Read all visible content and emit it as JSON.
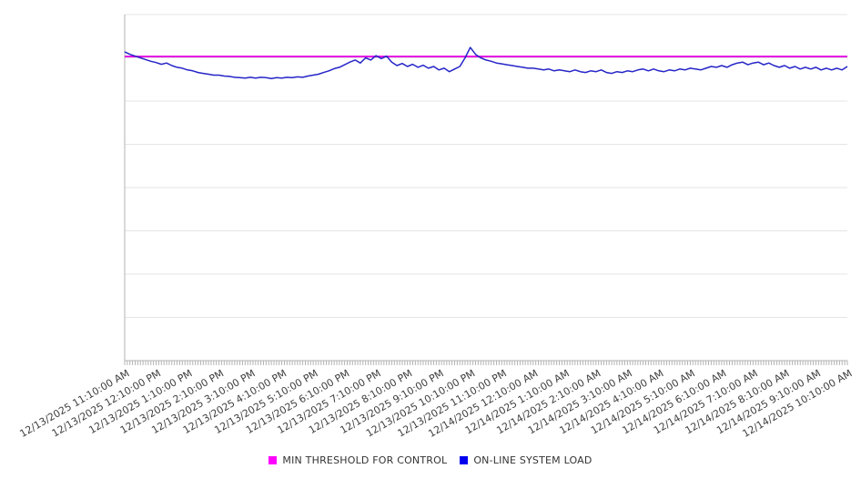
{
  "page": {
    "background_color": "#ffffff"
  },
  "chart_data": {
    "type": "line",
    "title": "",
    "x_axis": {
      "tick_labels": [
        "12/13/2025 11:10:00 AM",
        "12/13/2025 12:10:00 PM",
        "12/13/2025 1:10:00 PM",
        "12/13/2025 2:10:00 PM",
        "12/13/2025 3:10:00 PM",
        "12/13/2025 4:10:00 PM",
        "12/13/2025 5:10:00 PM",
        "12/13/2025 6:10:00 PM",
        "12/13/2025 7:10:00 PM",
        "12/13/2025 8:10:00 PM",
        "12/13/2025 9:10:00 PM",
        "12/13/2025 10:10:00 PM",
        "12/13/2025 11:10:00 PM",
        "12/14/2025 12:10:00 AM",
        "12/14/2025 1:10:00 AM",
        "12/14/2025 2:10:00 AM",
        "12/14/2025 3:10:00 AM",
        "12/14/2025 4:10:00 AM",
        "12/14/2025 5:10:00 AM",
        "12/14/2025 6:10:00 AM",
        "12/14/2025 7:10:00 AM",
        "12/14/2025 8:10:00 AM",
        "12/14/2025 9:10:00 AM",
        "12/14/2025 10:10:00 AM"
      ],
      "minor_tick_interval_minutes": 5,
      "label_rotation_deg": -30
    },
    "y_axis": {
      "min": 0,
      "max": 8,
      "gridline_step": 1,
      "tick_labels_visible": false
    },
    "grid": {
      "horizontal": true,
      "vertical": false,
      "color": "#e5e5e5"
    },
    "axis_color": "#b3b3b3",
    "label_color": "#3f3f3f",
    "legend": {
      "position": "bottom-center"
    },
    "series": [
      {
        "name": "MIN THRESHOLD FOR CONTROL",
        "type": "constant-line",
        "value": 7.03,
        "color": "#e300e3",
        "legend_color": "#ff00ff"
      },
      {
        "name": "ON-LINE SYSTEM LOAD",
        "type": "line",
        "color": "#2525c8",
        "legend_color": "#0000ee",
        "x_start": "12/13/2025 11:10:00 AM",
        "x_end": "12/14/2025 10:10:00 AM",
        "interval_minutes": 10,
        "values": [
          7.14,
          7.08,
          7.04,
          7.0,
          6.96,
          6.92,
          6.89,
          6.85,
          6.88,
          6.82,
          6.78,
          6.76,
          6.72,
          6.7,
          6.66,
          6.64,
          6.62,
          6.6,
          6.6,
          6.58,
          6.57,
          6.55,
          6.54,
          6.53,
          6.55,
          6.53,
          6.55,
          6.54,
          6.52,
          6.54,
          6.53,
          6.55,
          6.54,
          6.56,
          6.55,
          6.58,
          6.6,
          6.62,
          6.66,
          6.7,
          6.75,
          6.78,
          6.84,
          6.9,
          6.95,
          6.88,
          7.0,
          6.95,
          7.05,
          6.98,
          7.04,
          6.9,
          6.82,
          6.87,
          6.8,
          6.85,
          6.78,
          6.83,
          6.76,
          6.8,
          6.72,
          6.76,
          6.68,
          6.74,
          6.8,
          7.0,
          7.24,
          7.08,
          7.0,
          6.95,
          6.92,
          6.88,
          6.86,
          6.84,
          6.82,
          6.8,
          6.78,
          6.76,
          6.76,
          6.74,
          6.72,
          6.74,
          6.7,
          6.72,
          6.7,
          6.68,
          6.72,
          6.68,
          6.66,
          6.7,
          6.68,
          6.72,
          6.66,
          6.64,
          6.68,
          6.66,
          6.7,
          6.68,
          6.72,
          6.74,
          6.7,
          6.74,
          6.7,
          6.68,
          6.72,
          6.7,
          6.74,
          6.72,
          6.76,
          6.74,
          6.72,
          6.76,
          6.8,
          6.78,
          6.82,
          6.78,
          6.84,
          6.88,
          6.9,
          6.84,
          6.88,
          6.9,
          6.84,
          6.88,
          6.82,
          6.78,
          6.82,
          6.76,
          6.8,
          6.74,
          6.78,
          6.74,
          6.78,
          6.72,
          6.76,
          6.72,
          6.76,
          6.72,
          6.8
        ]
      }
    ]
  }
}
